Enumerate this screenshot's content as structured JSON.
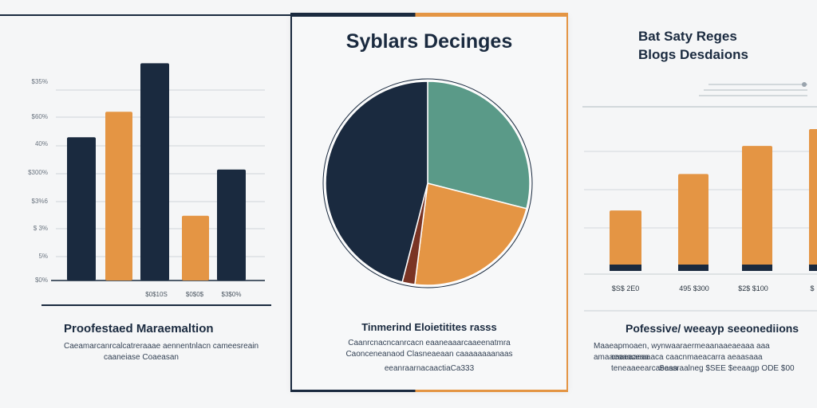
{
  "chart_data": [
    {
      "type": "bar",
      "categories": [
        "",
        "",
        "",
        "",
        ""
      ],
      "values": [
        62,
        73,
        94,
        28,
        48
      ],
      "colors": [
        "#1a2a3f",
        "#e49544",
        "#1a2a3f",
        "#e49544",
        "#1a2a3f"
      ],
      "ylim": [
        0,
        100
      ],
      "ytick_labels": [
        "$0%",
        "5%",
        "$ 3%",
        "$3%6",
        "$300%",
        "40%",
        "$60%",
        "$35%"
      ],
      "xtick_labels": [
        "$0$10S",
        "$0$0$",
        "$3$0%"
      ],
      "grid": true,
      "caption": "Proofestaed Maraemaltion",
      "caption_lines": [
        "Caeamarcanrcalcatreraaae aennentnlacn cameesreain",
        "caaneiase Coaeasan"
      ]
    },
    {
      "type": "pie",
      "title": "Syblars Decinges",
      "values": [
        46,
        29,
        23,
        2
      ],
      "colors": [
        "#1a2a3f",
        "#5a9a88",
        "#e49544",
        "#7a3424"
      ],
      "caption": "Tinmerind Eloietitites rasss",
      "caption_lines": [
        "Caanrcnacncanrcacn eaaneaaarcaaeenatmra",
        "Caonceneanaod Clasneaeaan caaaaaaaanaas",
        "eeanraarnacaactiaCa333"
      ]
    },
    {
      "type": "bar",
      "title": "Bat Saty Reges\nBlogs Desdaions",
      "categories": [
        "$S$ 2E0",
        "495 $300",
        "$2$ $100",
        "$"
      ],
      "values": [
        42,
        68,
        88,
        100
      ],
      "colors": [
        "#e49544",
        "#e49544",
        "#e49544",
        "#e49544"
      ],
      "ylim": [
        0,
        100
      ],
      "grid": true,
      "caption": "Pofessive/ weeayp seeonediions",
      "caption_lines": [
        "Maaeapmoaen, wynwaaraermeaanaaeaeaaa aaa amaaeaaaceaa",
        "caaeaaeaaaca caacnmaeacarra aeaasaaa teneaaeearcaeaaa",
        "Sessraalneg $SEE $eeaagp ODE $00"
      ]
    }
  ]
}
